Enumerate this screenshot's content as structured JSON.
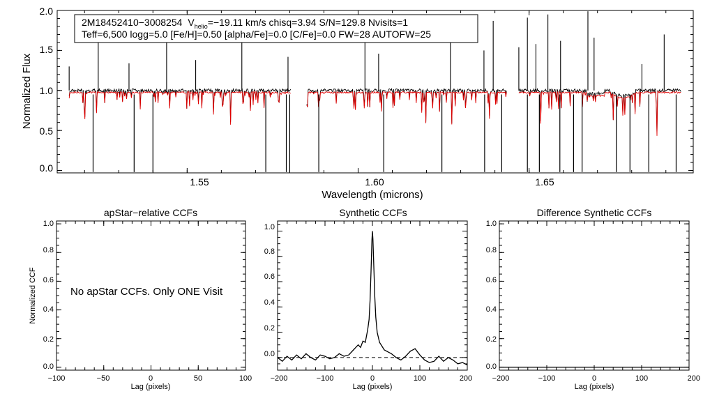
{
  "chart_data": [
    {
      "type": "line",
      "id": "spectrum",
      "title": "",
      "xlabel": "Wavelength (microns)",
      "ylabel": "Normalized Flux",
      "xlim": [
        1.512,
        1.698
      ],
      "ylim": [
        -0.03,
        2.0
      ],
      "xticks": [
        1.55,
        1.6,
        1.65
      ],
      "xtick_labels": [
        "1.55",
        "1.60",
        "1.65"
      ],
      "yticks": [
        0.0,
        0.5,
        1.0,
        1.5,
        2.0
      ],
      "ytick_labels": [
        "0.0",
        "0.5",
        "1.0",
        "1.5",
        "2.0"
      ],
      "chips": [
        [
          1.5155,
          1.5803
        ],
        [
          1.585,
          1.6435
        ],
        [
          1.647,
          1.6945
        ]
      ],
      "series": [
        {
          "name": "observed",
          "color": "#000000"
        },
        {
          "name": "synthetic model",
          "color": "#e00000"
        }
      ],
      "annotation": {
        "line1_id": "2M18452410−3008254",
        "line1_v": "V",
        "line1_vsub": "helio",
        "line1_rest": "=−19.11 km/s  chisq=3.94  S/N=129.8  Nvisits=1",
        "line2": "Teff=6,500 logg=5.0 [Fe/H]=0.50 [alpha/Fe]=0.0 [C/Fe]=0.0 FW=28 AUTOFW=25"
      },
      "spikes_up": [
        1.5155,
        1.524,
        1.533,
        1.544,
        1.5525,
        1.566,
        1.5795,
        1.602,
        1.606,
        1.627,
        1.6368,
        1.6395,
        1.647,
        1.6495,
        1.652,
        1.6555,
        1.6592,
        1.6672,
        1.669,
        1.683,
        1.6895
      ],
      "spikes_down": [
        1.5225,
        1.5345,
        1.54,
        1.573,
        1.579,
        1.58,
        1.5885,
        1.6075,
        1.6245,
        1.637,
        1.642,
        1.6495,
        1.653,
        1.659,
        1.663,
        1.6655,
        1.6755,
        1.6795,
        1.685,
        1.693
      ]
    },
    {
      "type": "line",
      "id": "apstar-ccf",
      "title": "apStar−relative CCFs",
      "xlabel": "Lag (pixels)",
      "ylabel": "Normalized CCF",
      "xlim": [
        -100,
        100
      ],
      "ylim": [
        -0.02,
        1.02
      ],
      "xticks": [
        -100,
        -50,
        0,
        50,
        100
      ],
      "xtick_labels": [
        "−100",
        "−50",
        "0",
        "50",
        "100"
      ],
      "yticks": [
        0.0,
        0.2,
        0.4,
        0.6,
        0.8,
        1.0
      ],
      "ytick_labels": [
        "0.0",
        "0.2",
        "0.4",
        "0.6",
        "0.8",
        "1.0"
      ],
      "note": "No apStar CCFs.  Only ONE Visit"
    },
    {
      "type": "line",
      "id": "synthetic-ccf",
      "title": "Synthetic CCFs",
      "xlabel": "Lag (pixels)",
      "ylabel": "",
      "xlim": [
        -200,
        200
      ],
      "ylim": [
        -0.1,
        1.08
      ],
      "xticks": [
        -200,
        -100,
        0,
        100,
        200
      ],
      "xtick_labels": [
        "−200",
        "−100",
        "0",
        "100",
        "200"
      ],
      "yticks": [
        0.0,
        0.2,
        0.4,
        0.6,
        0.8,
        1.0
      ],
      "ytick_labels": [
        "0.0",
        "0.2",
        "0.4",
        "0.6",
        "0.8",
        "1.0"
      ],
      "baseline": 0.0,
      "x": [
        -200,
        -190,
        -180,
        -170,
        -160,
        -150,
        -140,
        -130,
        -120,
        -110,
        -100,
        -90,
        -80,
        -70,
        -60,
        -50,
        -40,
        -30,
        -25,
        -20,
        -15,
        -10,
        -7,
        -5,
        -3,
        -1,
        0,
        1,
        3,
        5,
        7,
        10,
        15,
        20,
        25,
        30,
        40,
        50,
        60,
        70,
        80,
        90,
        100,
        110,
        120,
        130,
        140,
        150,
        160,
        170,
        180,
        190,
        200
      ],
      "values": [
        0.0,
        -0.03,
        0.01,
        -0.02,
        0.02,
        -0.01,
        0.03,
        0.0,
        -0.02,
        0.02,
        0.01,
        -0.01,
        0.0,
        0.03,
        0.01,
        0.02,
        0.06,
        0.1,
        0.08,
        0.13,
        0.12,
        0.22,
        0.3,
        0.45,
        0.68,
        0.93,
        1.0,
        0.94,
        0.72,
        0.48,
        0.32,
        0.2,
        0.12,
        0.09,
        0.06,
        0.05,
        0.03,
        0.0,
        -0.02,
        0.01,
        0.05,
        0.07,
        0.02,
        -0.02,
        -0.04,
        -0.03,
        0.01,
        -0.03,
        0.0,
        -0.02,
        -0.05,
        -0.04,
        -0.06
      ]
    },
    {
      "type": "line",
      "id": "difference-ccf",
      "title": "Difference Synthetic CCFs",
      "xlabel": "Lag (pixels)",
      "ylabel": "",
      "xlim": [
        -200,
        200
      ],
      "ylim": [
        -0.02,
        1.02
      ],
      "xticks": [
        -200,
        -100,
        0,
        100,
        200
      ],
      "xtick_labels": [
        "−200",
        "−100",
        "0",
        "100",
        "200"
      ],
      "yticks": [
        0.0,
        0.2,
        0.4,
        0.6,
        0.8,
        1.0
      ],
      "ytick_labels": [
        "0.0",
        "0.2",
        "0.4",
        "0.6",
        "0.8",
        "1.0"
      ],
      "values": [
        0.0,
        0.0
      ]
    }
  ]
}
